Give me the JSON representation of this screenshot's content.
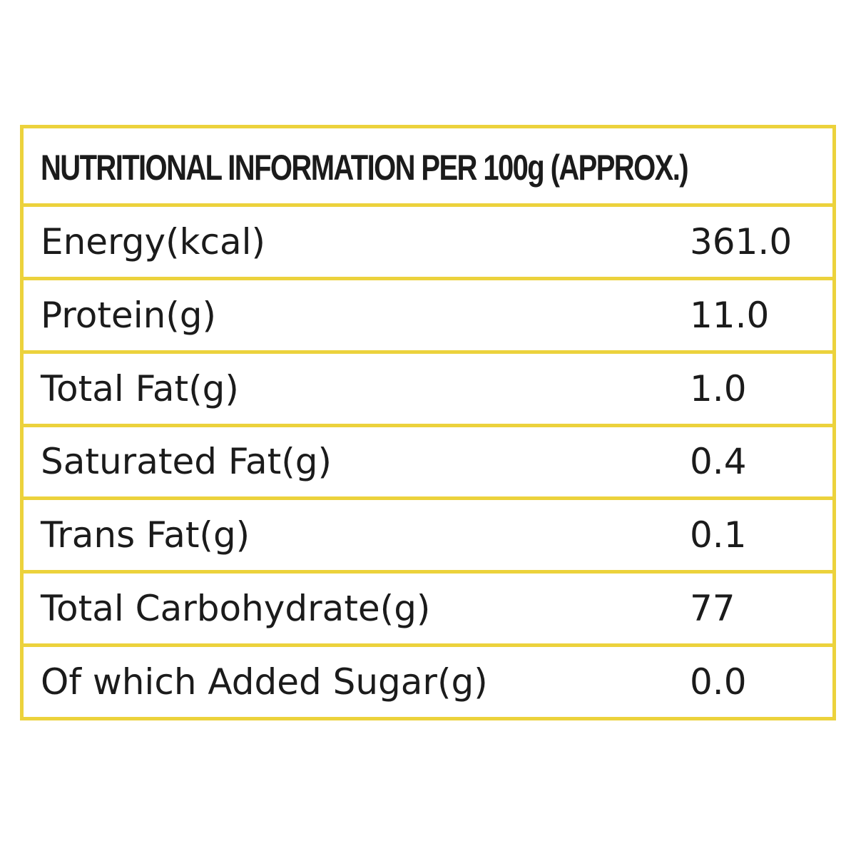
{
  "table": {
    "title": "NUTRITIONAL INFORMATION PER 100g (APPROX.)",
    "rows": [
      [
        "Energy(kcal)",
        "361.0"
      ],
      [
        "Protein(g)",
        "11.0"
      ],
      [
        "Total Fat(g)",
        "1.0"
      ],
      [
        "Saturated Fat(g)",
        "0.4"
      ],
      [
        "Trans Fat(g)",
        "0.1"
      ],
      [
        "Total Carbohydrate(g)",
        "77"
      ],
      [
        "Of which Added Sugar(g)",
        "0.0"
      ]
    ]
  }
}
